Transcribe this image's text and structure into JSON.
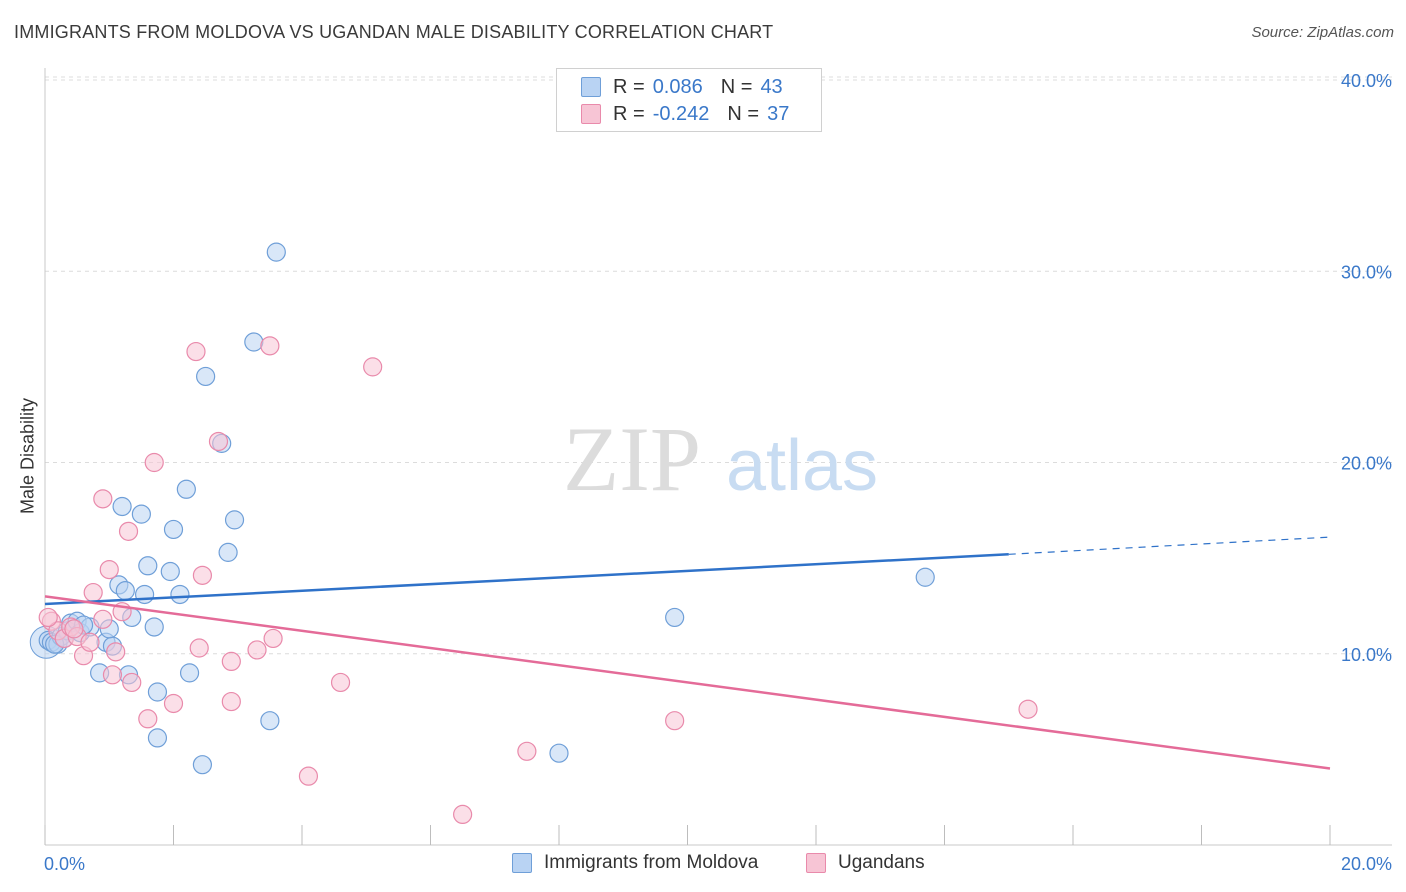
{
  "header": {
    "title": "IMMIGRANTS FROM MOLDOVA VS UGANDAN MALE DISABILITY CORRELATION CHART",
    "source": "Source: ZipAtlas.com"
  },
  "watermark": {
    "zip": "ZIP",
    "atlas": "atlas"
  },
  "colors": {
    "blue_fill": "#b9d3f3",
    "blue_stroke": "#6f9fd8",
    "blue_line": "#2f72c9",
    "pink_fill": "#f7c5d5",
    "pink_stroke": "#e98aab",
    "pink_line": "#e46b98",
    "tick_text": "#3a78c9",
    "grid": "#dcdcdc"
  },
  "legend": {
    "rows": [
      {
        "r_label": "R =",
        "r_value": "0.086",
        "n_label": "N =",
        "n_value": "43"
      },
      {
        "r_label": "R =",
        "r_value": "-0.242",
        "n_label": "N =",
        "n_value": "37"
      }
    ]
  },
  "chart_data": {
    "type": "scatter",
    "title": "IMMIGRANTS FROM MOLDOVA VS UGANDAN MALE DISABILITY CORRELATION CHART",
    "xlabel": "",
    "ylabel": "Male Disability",
    "xlim": [
      0,
      20
    ],
    "ylim": [
      0,
      40
    ],
    "x_tick_labels": [
      "0.0%",
      "20.0%"
    ],
    "y_tick_labels": [
      "10.0%",
      "20.0%",
      "30.0%",
      "40.0%"
    ],
    "y_ticks": [
      10,
      20,
      30,
      40
    ],
    "grid": true,
    "legend_position": "top-center",
    "series": [
      {
        "name": "Immigrants from Moldova",
        "color": "blue",
        "points": [
          [
            0.05,
            10.7
          ],
          [
            0.1,
            10.6
          ],
          [
            0.2,
            10.5
          ],
          [
            0.25,
            10.9
          ],
          [
            0.35,
            11.2
          ],
          [
            0.4,
            11.6
          ],
          [
            0.5,
            11.7
          ],
          [
            0.55,
            11.1
          ],
          [
            0.7,
            11.4
          ],
          [
            0.85,
            9.0
          ],
          [
            0.95,
            10.6
          ],
          [
            1.05,
            10.4
          ],
          [
            1.0,
            11.3
          ],
          [
            1.15,
            13.6
          ],
          [
            1.25,
            13.3
          ],
          [
            1.2,
            17.7
          ],
          [
            1.35,
            11.9
          ],
          [
            1.3,
            8.9
          ],
          [
            1.5,
            17.3
          ],
          [
            1.55,
            13.1
          ],
          [
            1.6,
            14.6
          ],
          [
            1.7,
            11.4
          ],
          [
            1.75,
            8.0
          ],
          [
            1.75,
            5.6
          ],
          [
            1.95,
            14.3
          ],
          [
            2.0,
            16.5
          ],
          [
            2.1,
            13.1
          ],
          [
            2.2,
            18.6
          ],
          [
            2.25,
            9.0
          ],
          [
            2.45,
            4.2
          ],
          [
            2.5,
            24.5
          ],
          [
            2.75,
            21.0
          ],
          [
            2.85,
            15.3
          ],
          [
            2.95,
            17.0
          ],
          [
            3.25,
            26.3
          ],
          [
            3.5,
            6.5
          ],
          [
            3.6,
            31.0
          ],
          [
            8.0,
            4.8
          ],
          [
            9.8,
            11.9
          ],
          [
            13.7,
            14.0
          ],
          [
            0.15,
            10.5
          ],
          [
            0.3,
            10.8
          ],
          [
            0.6,
            11.5
          ]
        ],
        "trend": {
          "x": [
            0,
            15
          ],
          "y": [
            12.6,
            15.2
          ],
          "dashed_extension": {
            "x": [
              15,
              20
            ],
            "y": [
              15.2,
              16.1
            ]
          }
        }
      },
      {
        "name": "Ugandans",
        "color": "pink",
        "points": [
          [
            0.1,
            11.7
          ],
          [
            0.2,
            11.2
          ],
          [
            0.3,
            10.8
          ],
          [
            0.4,
            11.4
          ],
          [
            0.5,
            10.9
          ],
          [
            0.6,
            9.9
          ],
          [
            0.7,
            10.6
          ],
          [
            0.75,
            13.2
          ],
          [
            0.9,
            11.8
          ],
          [
            0.9,
            18.1
          ],
          [
            1.0,
            14.4
          ],
          [
            1.05,
            8.9
          ],
          [
            1.1,
            10.1
          ],
          [
            1.2,
            12.2
          ],
          [
            1.3,
            16.4
          ],
          [
            1.35,
            8.5
          ],
          [
            1.6,
            6.6
          ],
          [
            1.7,
            20.0
          ],
          [
            2.0,
            7.4
          ],
          [
            2.35,
            25.8
          ],
          [
            2.4,
            10.3
          ],
          [
            2.45,
            14.1
          ],
          [
            2.7,
            21.1
          ],
          [
            2.9,
            9.6
          ],
          [
            2.9,
            7.5
          ],
          [
            3.3,
            10.2
          ],
          [
            3.5,
            26.1
          ],
          [
            3.55,
            10.8
          ],
          [
            4.1,
            3.6
          ],
          [
            4.6,
            8.5
          ],
          [
            5.1,
            25.0
          ],
          [
            6.5,
            1.6
          ],
          [
            7.5,
            4.9
          ],
          [
            9.8,
            6.5
          ],
          [
            15.3,
            7.1
          ],
          [
            0.05,
            11.9
          ],
          [
            0.45,
            11.3
          ]
        ],
        "trend": {
          "x": [
            0,
            20
          ],
          "y": [
            13.0,
            4.0
          ]
        }
      }
    ]
  },
  "bottom_legend": {
    "items": [
      {
        "label": "Immigrants from Moldova"
      },
      {
        "label": "Ugandans"
      }
    ]
  }
}
